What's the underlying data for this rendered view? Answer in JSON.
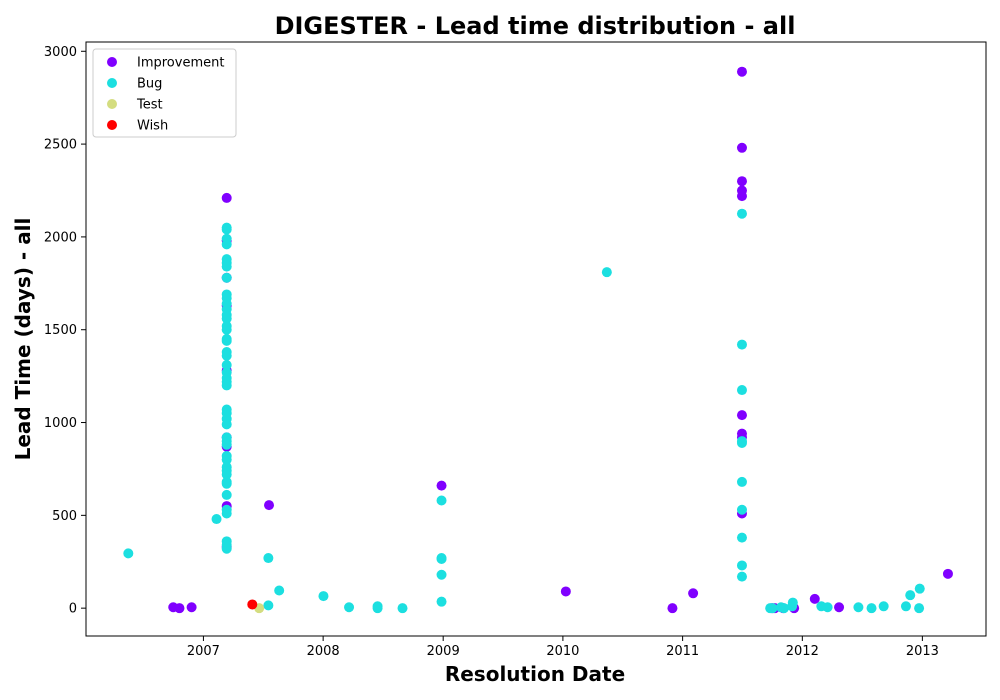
{
  "chart_data": {
    "type": "scatter",
    "title": "DIGESTER - Lead time distribution - all",
    "xlabel": "Resolution Date",
    "ylabel": "Lead Time (days) - all",
    "x_type": "date",
    "xlim": [
      "2006-01-08",
      "2013-07-14"
    ],
    "ylim": [
      -150,
      3050
    ],
    "x_ticks": [
      "2007-01-01",
      "2008-01-01",
      "2009-01-01",
      "2010-01-01",
      "2011-01-01",
      "2012-01-01",
      "2013-01-01"
    ],
    "x_tick_labels": [
      "2007",
      "2008",
      "2009",
      "2010",
      "2011",
      "2012",
      "2013"
    ],
    "y_ticks": [
      0,
      500,
      1000,
      1500,
      2000,
      2500,
      3000
    ],
    "y_tick_labels": [
      "0",
      "500",
      "1000",
      "1500",
      "2000",
      "2500",
      "3000"
    ],
    "legend_position": "upper-left",
    "grid": false,
    "series": [
      {
        "name": "Improvement",
        "color": "#8000ff",
        "points": [
          [
            "2006-10-01",
            5
          ],
          [
            "2006-10-20",
            0
          ],
          [
            "2006-11-26",
            5
          ],
          [
            "2007-03-13",
            2210
          ],
          [
            "2007-03-13",
            1980
          ],
          [
            "2007-03-13",
            1780
          ],
          [
            "2007-03-13",
            1630
          ],
          [
            "2007-03-13",
            1280
          ],
          [
            "2007-03-13",
            920
          ],
          [
            "2007-03-13",
            870
          ],
          [
            "2007-03-13",
            550
          ],
          [
            "2007-03-13",
            330
          ],
          [
            "2007-07-20",
            555
          ],
          [
            "2008-12-27",
            660
          ],
          [
            "2010-01-10",
            90
          ],
          [
            "2010-12-01",
            0
          ],
          [
            "2011-02-02",
            80
          ],
          [
            "2011-07-01",
            2890
          ],
          [
            "2011-07-01",
            2480
          ],
          [
            "2011-07-01",
            2300
          ],
          [
            "2011-07-01",
            2250
          ],
          [
            "2011-07-01",
            2220
          ],
          [
            "2011-07-01",
            1040
          ],
          [
            "2011-07-01",
            940
          ],
          [
            "2011-07-01",
            920
          ],
          [
            "2011-07-01",
            510
          ],
          [
            "2011-10-01",
            0
          ],
          [
            "2011-10-09",
            0
          ],
          [
            "2011-11-04",
            0
          ],
          [
            "2011-12-07",
            0
          ],
          [
            "2012-02-08",
            50
          ],
          [
            "2012-04-22",
            5
          ],
          [
            "2013-03-20",
            185
          ]
        ]
      },
      {
        "name": "Bug",
        "color": "#1cdfe0",
        "points": [
          [
            "2006-05-17",
            295
          ],
          [
            "2007-02-10",
            480
          ],
          [
            "2007-03-13",
            2050
          ],
          [
            "2007-03-13",
            2040
          ],
          [
            "2007-03-13",
            1990
          ],
          [
            "2007-03-13",
            1960
          ],
          [
            "2007-03-13",
            1880
          ],
          [
            "2007-03-13",
            1860
          ],
          [
            "2007-03-13",
            1840
          ],
          [
            "2007-03-13",
            1780
          ],
          [
            "2007-03-13",
            1690
          ],
          [
            "2007-03-13",
            1670
          ],
          [
            "2007-03-13",
            1640
          ],
          [
            "2007-03-13",
            1610
          ],
          [
            "2007-03-13",
            1580
          ],
          [
            "2007-03-13",
            1560
          ],
          [
            "2007-03-13",
            1520
          ],
          [
            "2007-03-13",
            1500
          ],
          [
            "2007-03-13",
            1450
          ],
          [
            "2007-03-13",
            1440
          ],
          [
            "2007-03-13",
            1380
          ],
          [
            "2007-03-13",
            1360
          ],
          [
            "2007-03-13",
            1310
          ],
          [
            "2007-03-13",
            1270
          ],
          [
            "2007-03-13",
            1240
          ],
          [
            "2007-03-13",
            1220
          ],
          [
            "2007-03-13",
            1200
          ],
          [
            "2007-03-13",
            1070
          ],
          [
            "2007-03-13",
            1050
          ],
          [
            "2007-03-13",
            1020
          ],
          [
            "2007-03-13",
            990
          ],
          [
            "2007-03-13",
            920
          ],
          [
            "2007-03-13",
            900
          ],
          [
            "2007-03-13",
            880
          ],
          [
            "2007-03-13",
            820
          ],
          [
            "2007-03-13",
            800
          ],
          [
            "2007-03-13",
            760
          ],
          [
            "2007-03-13",
            740
          ],
          [
            "2007-03-13",
            720
          ],
          [
            "2007-03-13",
            680
          ],
          [
            "2007-03-13",
            670
          ],
          [
            "2007-03-13",
            610
          ],
          [
            "2007-03-13",
            530
          ],
          [
            "2007-03-13",
            510
          ],
          [
            "2007-03-13",
            360
          ],
          [
            "2007-03-13",
            340
          ],
          [
            "2007-03-13",
            320
          ],
          [
            "2007-07-18",
            15
          ],
          [
            "2007-07-18",
            270
          ],
          [
            "2007-08-20",
            95
          ],
          [
            "2008-01-02",
            65
          ],
          [
            "2008-03-20",
            5
          ],
          [
            "2008-06-15",
            10
          ],
          [
            "2008-06-15",
            0
          ],
          [
            "2008-08-30",
            0
          ],
          [
            "2008-12-27",
            580
          ],
          [
            "2008-12-27",
            270
          ],
          [
            "2008-12-27",
            265
          ],
          [
            "2008-12-27",
            180
          ],
          [
            "2008-12-27",
            35
          ],
          [
            "2010-05-15",
            1810
          ],
          [
            "2011-07-01",
            2125
          ],
          [
            "2011-07-01",
            1420
          ],
          [
            "2011-07-01",
            1175
          ],
          [
            "2011-07-01",
            900
          ],
          [
            "2011-07-01",
            890
          ],
          [
            "2011-07-01",
            680
          ],
          [
            "2011-07-01",
            530
          ],
          [
            "2011-07-01",
            380
          ],
          [
            "2011-07-01",
            230
          ],
          [
            "2011-07-01",
            170
          ],
          [
            "2011-09-25",
            0
          ],
          [
            "2011-10-02",
            0
          ],
          [
            "2011-10-28",
            5
          ],
          [
            "2011-11-06",
            0
          ],
          [
            "2011-12-01",
            10
          ],
          [
            "2011-12-03",
            30
          ],
          [
            "2012-02-28",
            10
          ],
          [
            "2012-03-18",
            5
          ],
          [
            "2012-06-20",
            5
          ],
          [
            "2012-07-30",
            0
          ],
          [
            "2012-09-05",
            10
          ],
          [
            "2012-11-12",
            10
          ],
          [
            "2012-11-25",
            70
          ],
          [
            "2012-12-22",
            0
          ],
          [
            "2012-12-24",
            105
          ]
        ]
      },
      {
        "name": "Test",
        "color": "#d4dd80",
        "points": [
          [
            "2007-06-20",
            0
          ]
        ]
      },
      {
        "name": "Wish",
        "color": "#ff0000",
        "points": [
          [
            "2007-05-30",
            20
          ]
        ]
      }
    ]
  }
}
